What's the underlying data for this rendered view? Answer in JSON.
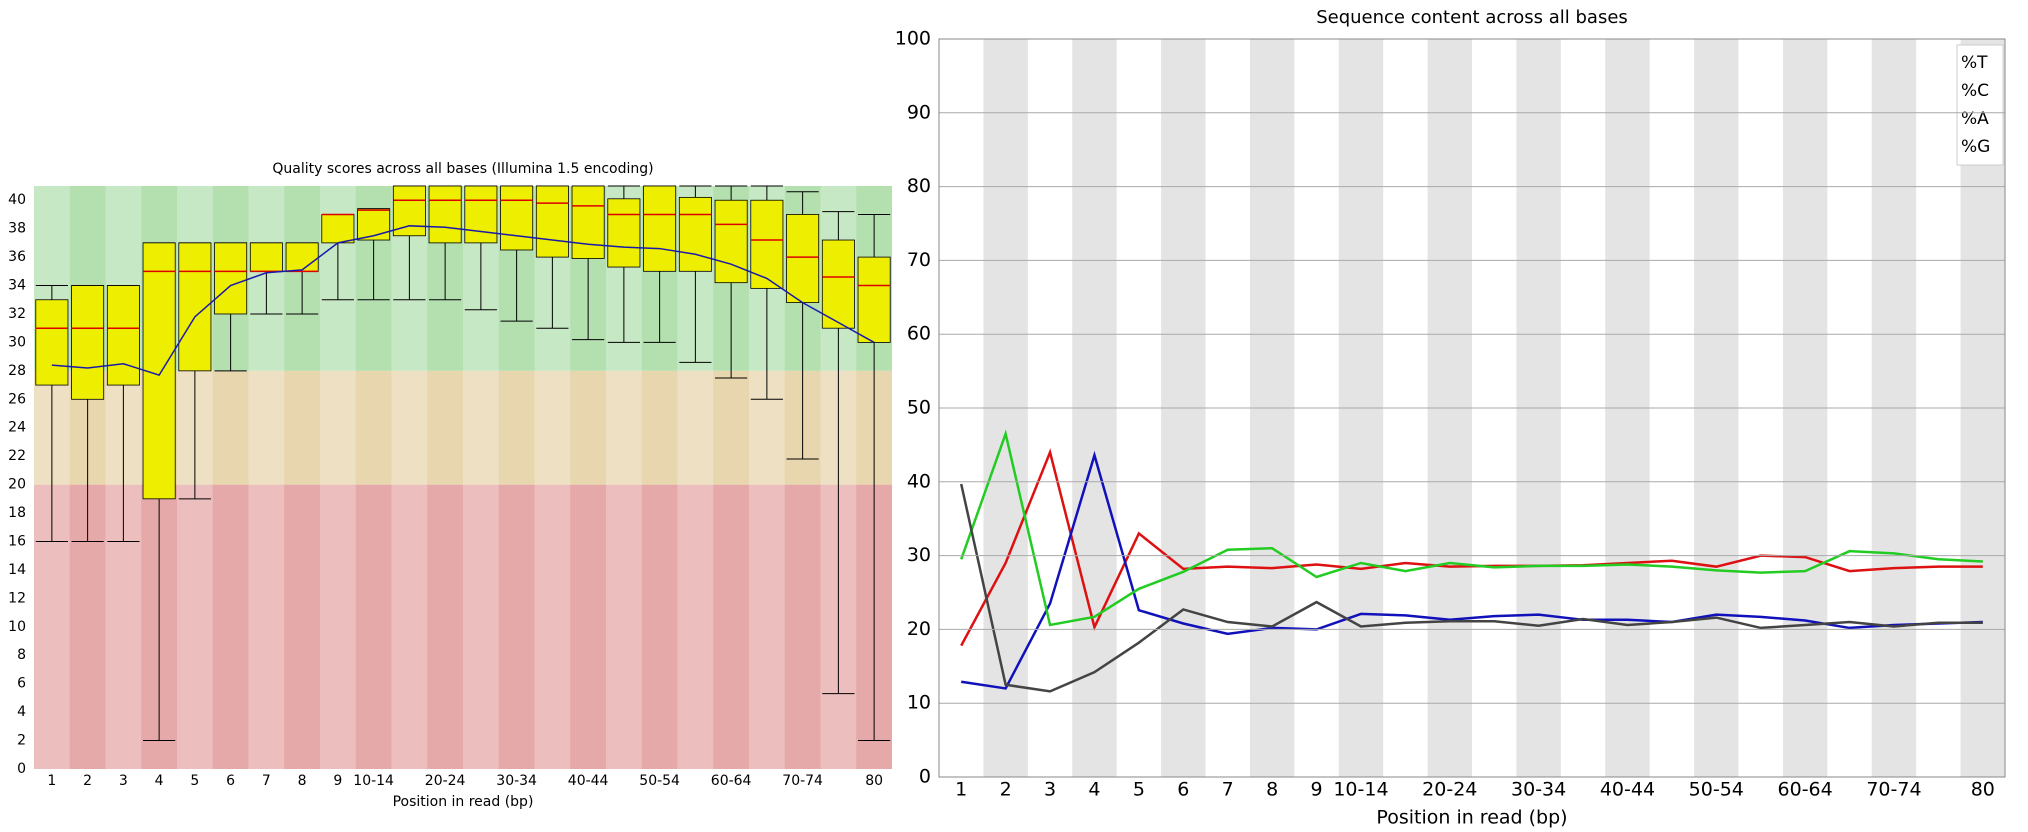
{
  "chart_data": [
    {
      "type": "box",
      "title": "Quality scores across all bases (Illumina 1.5 encoding)",
      "x_label": "Position in read (bp)",
      "categories": [
        "1",
        "2",
        "3",
        "4",
        "5",
        "6",
        "7",
        "8",
        "9",
        "10-14",
        null,
        "20-24",
        null,
        "30-34",
        null,
        "40-44",
        null,
        "50-54",
        null,
        "60-64",
        null,
        "70-74",
        null,
        "80"
      ],
      "low": [
        16,
        16,
        16,
        2,
        19,
        28,
        32,
        32,
        33,
        33,
        33,
        33,
        32.3,
        31.5,
        31,
        30.2,
        30,
        30,
        28.6,
        27.5,
        26,
        21.8,
        5.3,
        2
      ],
      "q1": [
        27,
        26,
        27,
        19,
        28,
        32,
        35,
        35,
        37,
        37.2,
        37.5,
        37,
        37,
        36.5,
        36,
        35.9,
        35.3,
        35,
        35,
        34.2,
        33.8,
        32.8,
        31,
        30
      ],
      "median": [
        31,
        31,
        31,
        35,
        35,
        35,
        35,
        35,
        39,
        39.3,
        40,
        40,
        40,
        40,
        39.8,
        39.6,
        39,
        39,
        39,
        38.3,
        37.2,
        36,
        34.6,
        34
      ],
      "q3": [
        33,
        34,
        34,
        37,
        37,
        37,
        37,
        37,
        39,
        39.4,
        41,
        41,
        41,
        41,
        41,
        41,
        40.1,
        41,
        40.2,
        40,
        40,
        39,
        37.2,
        36
      ],
      "high": [
        34,
        34,
        34,
        37,
        37,
        37,
        37,
        37,
        39,
        39.4,
        41,
        41,
        41,
        41,
        41,
        41,
        41,
        41,
        41,
        41,
        41,
        40.6,
        39.2,
        39
      ],
      "mean": [
        28.4,
        28.2,
        28.5,
        27.7,
        31.8,
        34,
        34.9,
        35.1,
        37,
        37.5,
        38.2,
        38.1,
        37.8,
        37.5,
        37.2,
        36.9,
        36.7,
        36.6,
        36.2,
        35.5,
        34.5,
        32.8,
        31.4,
        30
      ],
      "box_color": "#eeee00",
      "median_color": "#dd0000",
      "mean_color": "#1a1aaa",
      "zones": [
        {
          "from": 0,
          "to": 20,
          "color": "#e6a9a9"
        },
        {
          "from": 20,
          "to": 28,
          "color": "#e8d6ae"
        },
        {
          "from": 28,
          "to": 41,
          "color": "#b4e0b0"
        }
      ],
      "ylim": [
        0,
        41
      ],
      "yticks": [
        0,
        2,
        4,
        6,
        8,
        10,
        12,
        14,
        16,
        18,
        20,
        22,
        24,
        26,
        28,
        30,
        32,
        34,
        36,
        38,
        40
      ]
    },
    {
      "type": "line",
      "title": "Sequence content across all bases",
      "x_label": "Position in read (bp)",
      "categories": [
        "1",
        "2",
        "3",
        "4",
        "5",
        "6",
        "7",
        "8",
        "9",
        "10-14",
        null,
        "20-24",
        null,
        "30-34",
        null,
        "40-44",
        null,
        "50-54",
        null,
        "60-64",
        null,
        "70-74",
        null,
        "80"
      ],
      "series": [
        {
          "name": "%T",
          "color": "#dd1111",
          "values": [
            17.8,
            29,
            44,
            20.3,
            33,
            28.2,
            28.5,
            28.3,
            28.8,
            28.2,
            29,
            28.5,
            28.6,
            28.6,
            28.7,
            29,
            29.3,
            28.5,
            30,
            29.8,
            27.9,
            28.3,
            28.5,
            28.5
          ]
        },
        {
          "name": "%C",
          "color": "#1111bb",
          "values": [
            12.9,
            12,
            23.5,
            43.6,
            22.6,
            20.8,
            19.4,
            20.2,
            20,
            22.1,
            21.9,
            21.3,
            21.8,
            22,
            21.3,
            21.3,
            21,
            22,
            21.7,
            21.2,
            20.2,
            20.6,
            20.8,
            21
          ]
        },
        {
          "name": "%A",
          "color": "#22cc22",
          "values": [
            29.5,
            46.5,
            20.6,
            21.7,
            25.5,
            27.8,
            30.8,
            31,
            27.1,
            29,
            27.9,
            29,
            28.4,
            28.6,
            28.6,
            28.8,
            28.5,
            28,
            27.7,
            27.9,
            30.6,
            30.3,
            29.5,
            29.2
          ]
        },
        {
          "name": "%G",
          "color": "#444444",
          "values": [
            39.7,
            12.5,
            11.6,
            14.2,
            18.2,
            22.7,
            21,
            20.4,
            23.7,
            20.4,
            20.9,
            21.1,
            21.1,
            20.5,
            21.4,
            20.6,
            21,
            21.6,
            20.2,
            20.6,
            21,
            20.4,
            20.9,
            20.9
          ]
        }
      ],
      "ylim": [
        0,
        100
      ],
      "yticks": [
        0,
        10,
        20,
        30,
        40,
        50,
        60,
        70,
        80,
        90,
        100
      ],
      "grid": true
    }
  ]
}
